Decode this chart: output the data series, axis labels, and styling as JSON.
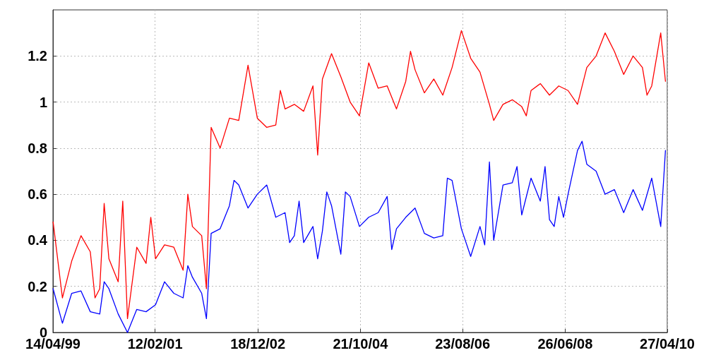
{
  "chart_data": {
    "type": "line",
    "grid": true,
    "line_style": "solid",
    "marker": "none",
    "xlim": [
      "1999-04-14",
      "2010-04-27"
    ],
    "xticks": [
      {
        "value": "1999-04-14",
        "label": "14/04/99"
      },
      {
        "value": "2001-02-12",
        "label": "12/02/01"
      },
      {
        "value": "2002-12-18",
        "label": "18/12/02"
      },
      {
        "value": "2004-10-21",
        "label": "21/10/04"
      },
      {
        "value": "2006-08-23",
        "label": "23/08/06"
      },
      {
        "value": "2008-06-26",
        "label": "26/06/08"
      },
      {
        "value": "2010-04-27",
        "label": "27/04/10"
      }
    ],
    "ylim": [
      0,
      1.4
    ],
    "yticks": [
      0,
      0.2,
      0.4,
      0.6,
      0.8,
      1,
      1.2
    ],
    "series": [
      {
        "color": "#ff0000",
        "x": [
          "1999-04-15",
          "1999-06-15",
          "1999-08-15",
          "1999-10-15",
          "1999-12-15",
          "2000-01-15",
          "2000-02-15",
          "2000-03-15",
          "2000-04-15",
          "2000-06-15",
          "2000-07-15",
          "2000-08-15",
          "2000-10-15",
          "2000-12-15",
          "2001-01-15",
          "2001-02-15",
          "2001-04-15",
          "2001-06-15",
          "2001-08-15",
          "2001-09-15",
          "2001-10-15",
          "2001-12-15",
          "2002-01-15",
          "2002-02-15",
          "2002-04-15",
          "2002-06-15",
          "2002-08-15",
          "2002-10-15",
          "2002-12-15",
          "2003-02-15",
          "2003-04-15",
          "2003-05-15",
          "2003-06-15",
          "2003-08-15",
          "2003-10-15",
          "2003-12-15",
          "2004-01-15",
          "2004-02-15",
          "2004-04-15",
          "2004-06-15",
          "2004-08-15",
          "2004-10-15",
          "2004-12-15",
          "2005-02-15",
          "2005-04-15",
          "2005-06-15",
          "2005-08-15",
          "2005-09-15",
          "2005-10-15",
          "2005-12-15",
          "2006-02-15",
          "2006-04-15",
          "2006-06-15",
          "2006-08-15",
          "2006-10-15",
          "2006-12-15",
          "2007-02-15",
          "2007-03-15",
          "2007-05-15",
          "2007-07-15",
          "2007-09-15",
          "2007-10-15",
          "2007-11-15",
          "2008-01-15",
          "2008-03-15",
          "2008-05-15",
          "2008-07-15",
          "2008-09-15",
          "2008-11-15",
          "2009-01-15",
          "2009-03-15",
          "2009-05-15",
          "2009-07-15",
          "2009-09-15",
          "2009-11-15",
          "2009-12-15",
          "2010-01-15",
          "2010-03-15",
          "2010-04-15"
        ],
        "values": [
          0.48,
          0.15,
          0.31,
          0.42,
          0.35,
          0.15,
          0.19,
          0.56,
          0.32,
          0.22,
          0.57,
          0.06,
          0.37,
          0.3,
          0.5,
          0.32,
          0.38,
          0.37,
          0.27,
          0.6,
          0.46,
          0.42,
          0.19,
          0.89,
          0.8,
          0.93,
          0.92,
          1.16,
          0.93,
          0.89,
          0.9,
          1.05,
          0.97,
          0.99,
          0.96,
          1.07,
          0.77,
          1.1,
          1.21,
          1.11,
          1.0,
          0.94,
          1.17,
          1.06,
          1.07,
          0.97,
          1.09,
          1.22,
          1.14,
          1.04,
          1.1,
          1.03,
          1.15,
          1.31,
          1.19,
          1.13,
          0.99,
          0.92,
          0.99,
          1.01,
          0.98,
          0.94,
          1.05,
          1.08,
          1.03,
          1.07,
          1.05,
          0.99,
          1.15,
          1.2,
          1.3,
          1.22,
          1.12,
          1.2,
          1.15,
          1.03,
          1.07,
          1.3,
          1.09
        ]
      },
      {
        "color": "#0000ff",
        "x": [
          "1999-04-15",
          "1999-06-15",
          "1999-08-15",
          "1999-10-15",
          "1999-12-15",
          "2000-02-15",
          "2000-03-15",
          "2000-04-15",
          "2000-06-15",
          "2000-08-15",
          "2000-10-15",
          "2000-12-15",
          "2001-02-15",
          "2001-04-15",
          "2001-06-15",
          "2001-08-15",
          "2001-09-15",
          "2001-10-15",
          "2001-12-15",
          "2002-01-15",
          "2002-02-15",
          "2002-04-15",
          "2002-06-15",
          "2002-07-15",
          "2002-08-15",
          "2002-10-15",
          "2002-12-15",
          "2003-02-15",
          "2003-04-15",
          "2003-06-15",
          "2003-07-15",
          "2003-08-15",
          "2003-09-15",
          "2003-10-15",
          "2003-12-15",
          "2004-01-15",
          "2004-02-15",
          "2004-03-15",
          "2004-04-15",
          "2004-06-15",
          "2004-07-15",
          "2004-08-15",
          "2004-10-15",
          "2004-12-15",
          "2005-02-15",
          "2005-04-15",
          "2005-05-15",
          "2005-06-15",
          "2005-08-15",
          "2005-10-15",
          "2005-12-15",
          "2006-02-15",
          "2006-04-15",
          "2006-05-15",
          "2006-06-15",
          "2006-08-15",
          "2006-10-15",
          "2006-12-15",
          "2007-01-15",
          "2007-02-15",
          "2007-03-15",
          "2007-05-15",
          "2007-07-15",
          "2007-08-15",
          "2007-09-15",
          "2007-11-15",
          "2008-01-15",
          "2008-02-15",
          "2008-03-15",
          "2008-04-15",
          "2008-05-15",
          "2008-06-15",
          "2008-07-15",
          "2008-09-15",
          "2008-10-15",
          "2008-11-15",
          "2009-01-15",
          "2009-03-15",
          "2009-05-15",
          "2009-07-15",
          "2009-09-15",
          "2009-11-15",
          "2010-01-15",
          "2010-03-15",
          "2010-04-15"
        ],
        "values": [
          0.19,
          0.04,
          0.17,
          0.18,
          0.09,
          0.08,
          0.22,
          0.19,
          0.08,
          0.0,
          0.1,
          0.09,
          0.12,
          0.22,
          0.17,
          0.15,
          0.29,
          0.24,
          0.17,
          0.06,
          0.43,
          0.45,
          0.55,
          0.66,
          0.64,
          0.54,
          0.6,
          0.64,
          0.5,
          0.52,
          0.39,
          0.42,
          0.57,
          0.39,
          0.46,
          0.32,
          0.44,
          0.61,
          0.55,
          0.34,
          0.61,
          0.59,
          0.46,
          0.5,
          0.52,
          0.59,
          0.36,
          0.45,
          0.5,
          0.54,
          0.43,
          0.41,
          0.42,
          0.67,
          0.66,
          0.45,
          0.33,
          0.46,
          0.38,
          0.74,
          0.4,
          0.64,
          0.65,
          0.72,
          0.51,
          0.67,
          0.57,
          0.72,
          0.49,
          0.46,
          0.59,
          0.5,
          0.6,
          0.79,
          0.83,
          0.73,
          0.7,
          0.6,
          0.62,
          0.52,
          0.62,
          0.53,
          0.67,
          0.46,
          0.79
        ]
      }
    ]
  }
}
